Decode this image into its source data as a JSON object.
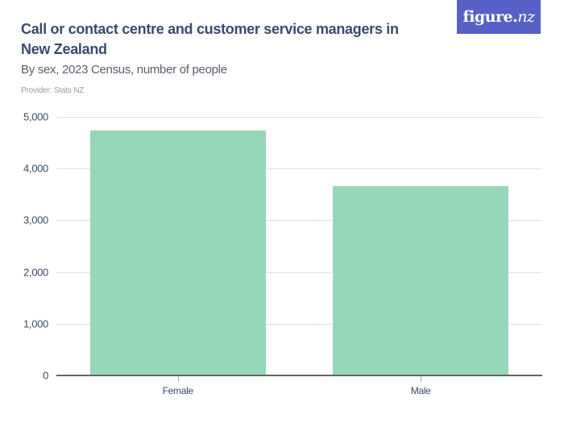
{
  "header": {
    "title": "Call or contact centre and customer service managers in New Zealand",
    "subtitle": "By sex, 2023 Census, number of people",
    "provider": "Provider: Stats NZ"
  },
  "logo": {
    "text_main": "figure.",
    "text_nz": "nz",
    "bg_color": "#5660c6"
  },
  "colors": {
    "bar": "#97d7b9",
    "text": "#3b4a6b",
    "grid": "#e0e0e0"
  },
  "chart_data": {
    "type": "bar",
    "title": "Call or contact centre and customer service managers in New Zealand",
    "subtitle": "By sex, 2023 Census, number of people",
    "categories": [
      "Female",
      "Male"
    ],
    "values": [
      4735,
      3660
    ],
    "xlabel": "",
    "ylabel": "",
    "ylim": [
      0,
      5000
    ],
    "yticks": [
      0,
      1000,
      2000,
      3000,
      4000,
      5000
    ],
    "ytick_labels": [
      "0",
      "1,000",
      "2,000",
      "3,000",
      "4,000",
      "5,000"
    ],
    "grid": true,
    "legend": "none"
  }
}
